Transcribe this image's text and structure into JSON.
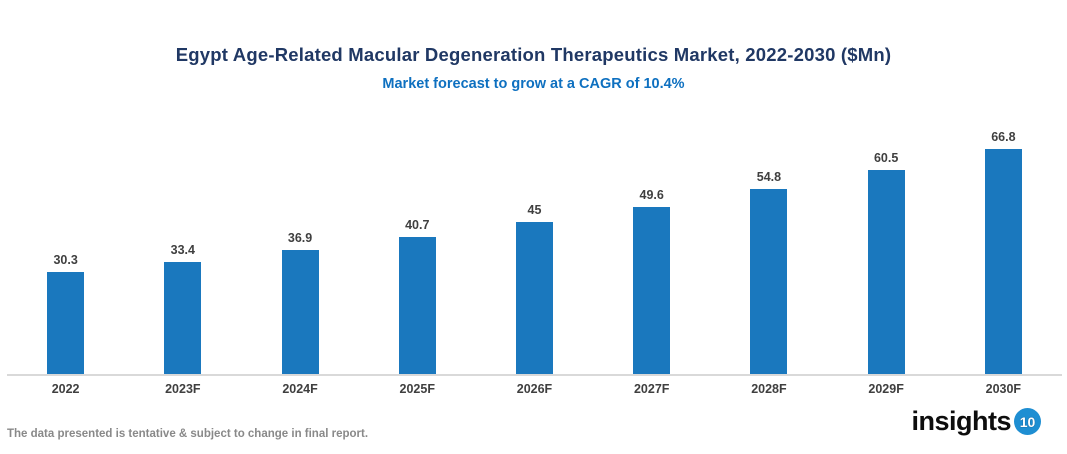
{
  "title": "Egypt Age-Related Macular Degeneration Therapeutics Market, 2022-2030 ($Mn)",
  "subtitle": "Market forecast to grow at a CAGR of 10.4%",
  "chart_data": {
    "type": "bar",
    "categories": [
      "2022",
      "2023F",
      "2024F",
      "2025F",
      "2026F",
      "2027F",
      "2028F",
      "2029F",
      "2030F"
    ],
    "values": [
      30.3,
      33.4,
      36.9,
      40.7,
      45,
      49.6,
      54.8,
      60.5,
      66.8
    ],
    "value_labels": [
      "30.3",
      "33.4",
      "36.9",
      "40.7",
      "45",
      "49.6",
      "54.8",
      "60.5",
      "66.8"
    ],
    "title": "Egypt Age-Related Macular Degeneration Therapeutics Market, 2022-2030 ($Mn)",
    "subtitle": "Market forecast to grow at a CAGR of 10.4%",
    "xlabel": "",
    "ylabel": "",
    "ylim": [
      0,
      70
    ],
    "grid": false,
    "legend": "none",
    "bar_color": "#1a78be"
  },
  "footer": {
    "disclaimer": "The data presented is tentative & subject to change in final report."
  },
  "logo": {
    "text": "insights",
    "badge": "10",
    "badge_color": "#1e8ed2"
  },
  "colors": {
    "title": "#203864",
    "subtitle": "#0e70c0",
    "bar": "#1a78be",
    "value_label": "#3f3f3f",
    "category_label": "#3f3f3f",
    "axis_line": "#d9d9d9",
    "footer_text": "#898989",
    "logo_text": "#0d0d0d",
    "logo_badge": "#1e8ed2"
  }
}
